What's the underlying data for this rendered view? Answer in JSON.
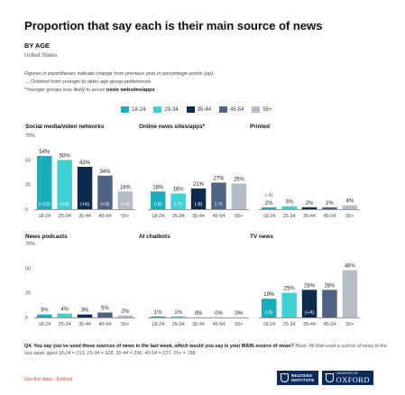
{
  "header": {
    "title": "Proportion that say each is their main source of news",
    "subtitle": "BY AGE",
    "region": "United States"
  },
  "notes": {
    "line1": "Figures in parentheses indicate change from previous year in percentage points (pp).",
    "line2": "→ Ordered from younger to older age group preferences",
    "line3_prefix": "*Younger groups less likely to acces ",
    "line3_bold": "news websites/apps"
  },
  "legend": [
    {
      "label": "18-24",
      "color": "#1aaebd"
    },
    {
      "label": "25-34",
      "color": "#3ed1d4"
    },
    {
      "label": "35-44",
      "color": "#0f2a4f"
    },
    {
      "label": "45-54",
      "color": "#4f6383"
    },
    {
      "label": "55+",
      "color": "#b4bcc7"
    }
  ],
  "chart_data": [
    {
      "type": "bar",
      "title": "Social media/video networks",
      "categories": [
        "18-24",
        "25-34",
        "35-44",
        "45-54",
        "55+"
      ],
      "values": [
        54,
        50,
        43,
        34,
        18
      ],
      "value_labels": [
        "54%",
        "50%",
        "43%",
        "34%",
        "18%"
      ],
      "changes": [
        "(+13)",
        "(+6)",
        "(+6)",
        "(+3)",
        "(+4)"
      ],
      "ylim": [
        0,
        75
      ],
      "yticks": [
        "75%",
        "50",
        "25",
        "0"
      ]
    },
    {
      "type": "bar",
      "title": "Online news sites/apps*",
      "categories": [
        "18-24",
        "25-34",
        "35-44",
        "45-54",
        "55+"
      ],
      "values": [
        18,
        16,
        21,
        27,
        26
      ],
      "value_labels": [
        "18%",
        "16%",
        "21%",
        "27%",
        "26%"
      ],
      "changes": [
        "(-6)",
        "(-7)",
        "(-9)",
        "(-7)",
        ""
      ],
      "ylim": [
        0,
        75
      ]
    },
    {
      "type": "bar",
      "title": "Printed",
      "categories": [
        "18-24",
        "25-34",
        "35-44",
        "45-54",
        "55+"
      ],
      "values": [
        2,
        3,
        2,
        2,
        4
      ],
      "value_labels": [
        "2%",
        "3%",
        "2%",
        "2%",
        "4%"
      ],
      "changes": [
        "(-4)",
        "",
        "",
        "",
        ""
      ],
      "ylim": [
        0,
        75
      ]
    },
    {
      "type": "bar",
      "title": "News podcasts",
      "categories": [
        "18-24",
        "25-34",
        "35-44",
        "45-54",
        "55+"
      ],
      "values": [
        3,
        4,
        3,
        5,
        2
      ],
      "value_labels": [
        "3%",
        "4%",
        "3%",
        "5%",
        "2%"
      ],
      "changes": [
        "",
        "",
        "",
        "",
        ""
      ],
      "ylim": [
        0,
        75
      ],
      "yticks": [
        "75%",
        "50",
        "25",
        "0"
      ]
    },
    {
      "type": "bar",
      "title": "AI chatbots",
      "categories": [
        "18-24",
        "25-34",
        "35-44",
        "45-54",
        "55+"
      ],
      "values": [
        1,
        1,
        0,
        0,
        0
      ],
      "value_labels": [
        "1%",
        "1%",
        "0%",
        "0%",
        "0%"
      ],
      "changes": [
        "",
        "",
        "",
        "",
        ""
      ],
      "ylim": [
        0,
        75
      ]
    },
    {
      "type": "bar",
      "title": "TV news",
      "categories": [
        "18-24",
        "25-34",
        "35-44",
        "45-54",
        "55+"
      ],
      "values": [
        19,
        25,
        28,
        28,
        48
      ],
      "value_labels": [
        "19%",
        "25%",
        "28%",
        "28%",
        "48%"
      ],
      "changes": [
        "(-5)",
        "",
        "(+4)",
        "",
        ""
      ],
      "ylim": [
        0,
        75
      ]
    }
  ],
  "question": {
    "main": "Q4. You say you've used these sources of news in the last week, which would you say is your MAIN source of news?",
    "base": "Base: All that used a source of news in the last week aged 18-24 = 213, 25-34 = 328, 35-44 = 296, 45-54 = 227, 55+ = 788."
  },
  "footer": {
    "get_data": "Get the data",
    "separator": " - ",
    "embed": "Embed"
  },
  "logos": {
    "reuters_line1": "REUTERS",
    "reuters_line2": "INSTITUTE",
    "oxford_small": "UNIVERSITY OF",
    "oxford_big": "OXFORD"
  }
}
